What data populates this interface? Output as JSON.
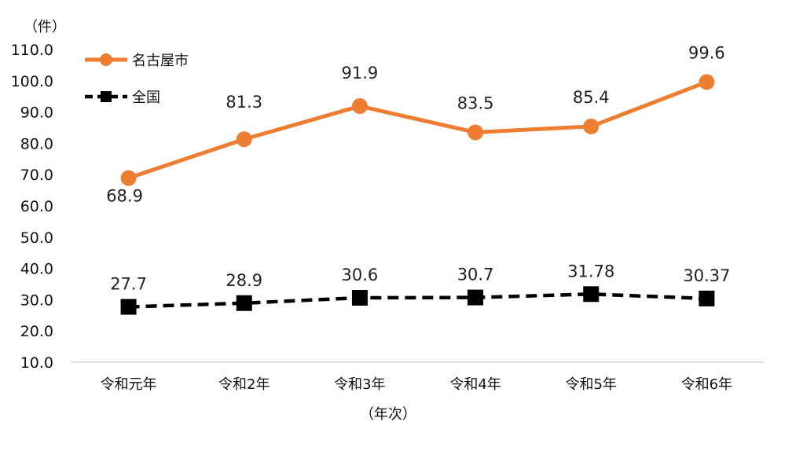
{
  "chart_data": {
    "type": "line",
    "categories": [
      "令和元年",
      "令和2年",
      "令和3年",
      "令和4年",
      "令和5年",
      "令和6年"
    ],
    "series": [
      {
        "name": "名古屋市",
        "values": [
          68.9,
          81.3,
          91.9,
          83.5,
          85.4,
          99.6
        ],
        "labels": [
          "68.9",
          "81.3",
          "91.9",
          "83.5",
          "85.4",
          "99.6"
        ],
        "color": "#ED7D31",
        "line_style": "solid",
        "marker": "circle"
      },
      {
        "name": "全国",
        "values": [
          27.7,
          28.9,
          30.6,
          30.7,
          31.78,
          30.37
        ],
        "labels": [
          "27.7",
          "28.9",
          "30.6",
          "30.7",
          "31.78",
          "30.37"
        ],
        "color": "#000000",
        "line_style": "dashed",
        "marker": "square"
      }
    ],
    "ylabel": "（件）",
    "xlabel": "（年次）",
    "ylim": [
      10,
      110
    ],
    "yticks": [
      "10.0",
      "20.0",
      "30.0",
      "40.0",
      "50.0",
      "60.0",
      "70.0",
      "80.0",
      "90.0",
      "100.0",
      "110.0"
    ],
    "grid": false,
    "legend_position": "top-left"
  }
}
